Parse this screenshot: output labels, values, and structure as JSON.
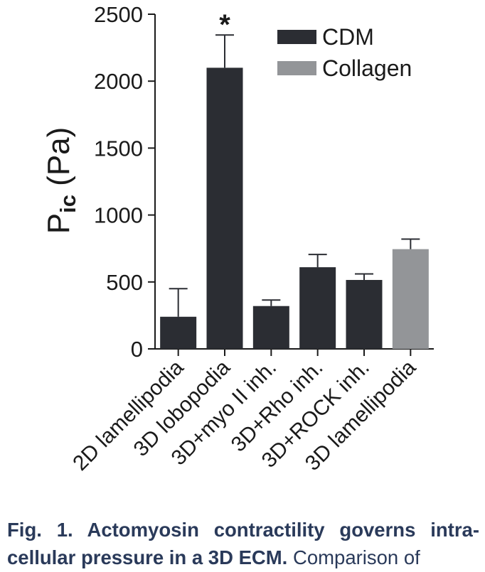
{
  "chart_data": {
    "type": "bar",
    "ylabel_main": "P",
    "ylabel_sub": "ic",
    "ylabel_unit": "(Pa)",
    "ylim": [
      0,
      2500
    ],
    "yticks": [
      0,
      500,
      1000,
      1500,
      2000,
      2500
    ],
    "categories": [
      "2D lamellipodia",
      "3D lobopodia",
      "3D+myo II inh.",
      "3D+Rho inh.",
      "3D+ROCK inh.",
      "3D lamellipodia"
    ],
    "values": [
      240,
      2100,
      320,
      610,
      515,
      745
    ],
    "errors": [
      210,
      245,
      45,
      95,
      45,
      75
    ],
    "bar_series": [
      "CDM",
      "CDM",
      "CDM",
      "CDM",
      "CDM",
      "Collagen"
    ],
    "significance": {
      "index": 1,
      "marker": "*"
    },
    "series": [
      {
        "name": "CDM",
        "color": "#2b2d33"
      },
      {
        "name": "Collagen",
        "color": "#939598"
      }
    ],
    "legend_position": "top-right",
    "grid": false
  },
  "caption": {
    "bold_text": "Fig. 1. Actomyosin contractility governs intra-cellular pressure in a 3D ECM.",
    "normal_text": " Comparison of"
  }
}
